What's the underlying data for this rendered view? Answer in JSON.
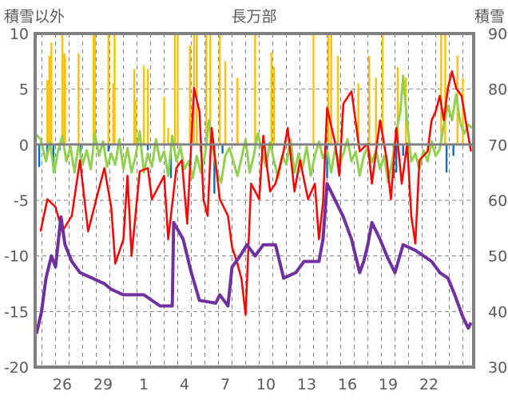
{
  "chart_data": {
    "type": "line",
    "title": "長万部",
    "ylabel_left": "積雪以外",
    "ylabel_right": "積雪",
    "ylim_left": [
      -20,
      10
    ],
    "ylim_right": [
      30,
      90
    ],
    "yticks_left": [
      "10",
      "5",
      "0",
      "-5",
      "-10",
      "-15",
      "-20"
    ],
    "yticks_right": [
      "90",
      "80",
      "70",
      "60",
      "50",
      "40",
      "30"
    ],
    "x_unit": "days from start (start = day 24)",
    "xlim": [
      0,
      32.3
    ],
    "xticks": [
      {
        "t": 2,
        "label": "26"
      },
      {
        "t": 5,
        "label": "29"
      },
      {
        "t": 8,
        "label": "1"
      },
      {
        "t": 11,
        "label": "4"
      },
      {
        "t": 14,
        "label": "7"
      },
      {
        "t": 17,
        "label": "10"
      },
      {
        "t": 20,
        "label": "13"
      },
      {
        "t": 23,
        "label": "16"
      },
      {
        "t": 26,
        "label": "19"
      },
      {
        "t": 29,
        "label": "22"
      }
    ],
    "grid": true,
    "colors": {
      "frame": "#808080",
      "red": "#ff0000",
      "purple": "#7030a0",
      "green": "#92d050",
      "yellow": "#ffc000",
      "blue": "#0070c0"
    },
    "series": [
      {
        "name": "yellow-bars",
        "axis": "left",
        "kind": "bar",
        "color": "#ffc000",
        "points": [
          [
            0.9,
            5.8
          ],
          [
            1.05,
            8
          ],
          [
            1.2,
            9.2
          ],
          [
            2,
            10
          ],
          [
            2.15,
            8.2
          ],
          [
            2.2,
            7.8
          ],
          [
            3.2,
            8.2
          ],
          [
            4.3,
            10
          ],
          [
            4.4,
            10
          ],
          [
            5.4,
            10
          ],
          [
            5.75,
            5.5
          ],
          [
            5.85,
            10
          ],
          [
            7.3,
            6.8
          ],
          [
            7.4,
            4
          ],
          [
            8,
            7.1
          ],
          [
            8.3,
            6.8
          ],
          [
            9.5,
            4.3
          ],
          [
            9.8,
            1.5
          ],
          [
            10.3,
            10
          ],
          [
            10.5,
            10
          ],
          [
            11.4,
            8.9
          ],
          [
            11.7,
            10
          ],
          [
            11.9,
            10
          ],
          [
            12.6,
            10
          ],
          [
            12.9,
            10
          ],
          [
            13.6,
            10
          ],
          [
            14,
            7.5
          ],
          [
            14.9,
            6
          ],
          [
            16.2,
            10
          ],
          [
            17.4,
            8.3
          ],
          [
            17.6,
            7
          ],
          [
            20.5,
            10
          ],
          [
            21.6,
            10
          ],
          [
            21.8,
            10
          ],
          [
            22.3,
            8
          ],
          [
            23.8,
            5.5
          ],
          [
            24.6,
            8
          ],
          [
            25.1,
            6
          ],
          [
            25.6,
            10
          ],
          [
            26.7,
            7
          ],
          [
            27.3,
            6
          ],
          [
            29.9,
            10
          ],
          [
            30.2,
            10
          ],
          [
            31.1,
            8
          ],
          [
            31.5,
            6
          ]
        ]
      },
      {
        "name": "blue-bars",
        "axis": "left",
        "kind": "bar",
        "color": "#0070c0",
        "points": [
          [
            0.3,
            -2
          ],
          [
            0.9,
            -1
          ],
          [
            1.35,
            -2.5
          ],
          [
            1.8,
            -0.5
          ],
          [
            3.35,
            -1.2
          ],
          [
            5.4,
            -0.6
          ],
          [
            8.3,
            -0.5
          ],
          [
            10,
            -3
          ],
          [
            12.2,
            -0.7
          ],
          [
            13.2,
            -4.4
          ],
          [
            13.8,
            -0.8
          ],
          [
            21.5,
            -3
          ],
          [
            24.5,
            -0.6
          ],
          [
            26.4,
            -3
          ],
          [
            26.6,
            -2.5
          ],
          [
            27.1,
            -1
          ],
          [
            30.3,
            -2.5
          ],
          [
            30.8,
            -1
          ]
        ]
      },
      {
        "name": "red",
        "axis": "left",
        "kind": "line",
        "color": "#ff0000",
        "points": [
          [
            0.4,
            -7.8
          ],
          [
            0.9,
            -4.9
          ],
          [
            1.5,
            -5.6
          ],
          [
            2,
            -7.8
          ],
          [
            2.7,
            -6.4
          ],
          [
            3.3,
            -1.4
          ],
          [
            3.9,
            -7.8
          ],
          [
            4.5,
            -4.9
          ],
          [
            5.1,
            -2.1
          ],
          [
            5.6,
            -5.6
          ],
          [
            5.9,
            -10.7
          ],
          [
            6.5,
            -8.5
          ],
          [
            6.8,
            -2.8
          ],
          [
            7.1,
            -10
          ],
          [
            7.7,
            -2.4
          ],
          [
            8.3,
            -2.1
          ],
          [
            8.6,
            -4.9
          ],
          [
            9.2,
            -3.5
          ],
          [
            9.5,
            -2.8
          ],
          [
            9.8,
            -8.5
          ],
          [
            10.4,
            -2.1
          ],
          [
            10.8,
            -1.4
          ],
          [
            11.2,
            -7.1
          ],
          [
            11.7,
            5.1
          ],
          [
            12.1,
            3
          ],
          [
            12.4,
            -4.9
          ],
          [
            12.7,
            -6.4
          ],
          [
            13,
            1.5
          ],
          [
            13.6,
            -4.9
          ],
          [
            14.2,
            -6.4
          ],
          [
            14.5,
            -9.2
          ],
          [
            14.9,
            -10.7
          ],
          [
            15.2,
            -12.1
          ],
          [
            15.5,
            -15.3
          ],
          [
            15.9,
            -3.5
          ],
          [
            16.5,
            -4.9
          ],
          [
            16.8,
            0.8
          ],
          [
            17.3,
            -4.2
          ],
          [
            17.7,
            -3.5
          ],
          [
            18.3,
            -0.6
          ],
          [
            18.6,
            1.5
          ],
          [
            19.1,
            -4.2
          ],
          [
            19.5,
            -1.4
          ],
          [
            20.1,
            -4.9
          ],
          [
            20.6,
            -3.5
          ],
          [
            20.9,
            -8.5
          ],
          [
            21.2,
            -5.2
          ],
          [
            21.5,
            3.3
          ],
          [
            22.1,
            0.1
          ],
          [
            22.4,
            -2.8
          ],
          [
            22.7,
            3.7
          ],
          [
            23.3,
            4.8
          ],
          [
            23.9,
            -0.6
          ],
          [
            24.5,
            0.1
          ],
          [
            24.8,
            -3.5
          ],
          [
            25.4,
            2.2
          ],
          [
            25.9,
            -1.4
          ],
          [
            26.2,
            -4.9
          ],
          [
            26.6,
            1.5
          ],
          [
            27,
            -3.5
          ],
          [
            27.4,
            0.1
          ],
          [
            27.7,
            -6.4
          ],
          [
            28,
            -8.9
          ],
          [
            28.3,
            -1.4
          ],
          [
            28.9,
            -0.6
          ],
          [
            29.2,
            2.2
          ],
          [
            29.5,
            3
          ],
          [
            29.8,
            4.4
          ],
          [
            30.1,
            2.2
          ],
          [
            30.4,
            5.1
          ],
          [
            30.7,
            6.6
          ],
          [
            31,
            5.1
          ],
          [
            31.4,
            4.4
          ],
          [
            31.8,
            1.5
          ],
          [
            32.1,
            -0.6
          ]
        ]
      },
      {
        "name": "green",
        "axis": "left",
        "kind": "line",
        "color": "#92d050",
        "points": [
          [
            0,
            1
          ],
          [
            0.4,
            0.5
          ],
          [
            0.8,
            -1.5
          ],
          [
            1.1,
            0.2
          ],
          [
            1.4,
            -2.5
          ],
          [
            1.7,
            -0.5
          ],
          [
            2,
            0.8
          ],
          [
            2.3,
            -1.5
          ],
          [
            2.6,
            -0.2
          ],
          [
            2.9,
            -2.5
          ],
          [
            3.2,
            0
          ],
          [
            3.5,
            -1.8
          ],
          [
            3.8,
            -0.5
          ],
          [
            4.1,
            -2.2
          ],
          [
            4.4,
            1
          ],
          [
            4.7,
            -1
          ],
          [
            5,
            0.3
          ],
          [
            5.3,
            -2
          ],
          [
            5.6,
            -0.8
          ],
          [
            5.9,
            -1.8
          ],
          [
            6.2,
            0.5
          ],
          [
            6.5,
            -2.2
          ],
          [
            6.8,
            -0.3
          ],
          [
            7.1,
            -2.5
          ],
          [
            7.4,
            -1
          ],
          [
            7.7,
            1.2
          ],
          [
            8,
            -2.5
          ],
          [
            8.3,
            -0.8
          ],
          [
            8.6,
            -2
          ],
          [
            8.9,
            0.5
          ],
          [
            9.2,
            -1.5
          ],
          [
            9.5,
            -0.6
          ],
          [
            9.8,
            -2.8
          ],
          [
            10.1,
            0.8
          ],
          [
            10.4,
            -1.5
          ],
          [
            10.7,
            -0.2
          ],
          [
            11,
            -2.2
          ],
          [
            11.3,
            -1.5
          ],
          [
            11.6,
            -3
          ],
          [
            11.9,
            -1
          ],
          [
            12.2,
            -2.5
          ],
          [
            12.5,
            -1
          ],
          [
            12.8,
            2.2
          ],
          [
            13.1,
            -0.5
          ],
          [
            13.4,
            -2.5
          ],
          [
            13.7,
            -3.4
          ],
          [
            14,
            -1
          ],
          [
            14.3,
            -0.3
          ],
          [
            14.6,
            -1.5
          ],
          [
            14.9,
            -2.8
          ],
          [
            15.2,
            -1.2
          ],
          [
            15.5,
            0.5
          ],
          [
            15.8,
            -2.5
          ],
          [
            16.1,
            -1
          ],
          [
            16.4,
            1
          ],
          [
            16.7,
            -0.5
          ],
          [
            17,
            -2
          ],
          [
            17.3,
            0.2
          ],
          [
            17.6,
            -1.5
          ],
          [
            17.9,
            -3
          ],
          [
            18.2,
            -1
          ],
          [
            18.5,
            -1.8
          ],
          [
            18.8,
            0.5
          ],
          [
            19.1,
            -2.5
          ],
          [
            19.4,
            -0.8
          ],
          [
            19.7,
            -2
          ],
          [
            20,
            -0.2
          ],
          [
            20.3,
            -2.8
          ],
          [
            20.6,
            -1
          ],
          [
            20.9,
            0.3
          ],
          [
            21.2,
            -1.2
          ],
          [
            21.5,
            -0.5
          ],
          [
            21.8,
            -2.5
          ],
          [
            22.1,
            -0.3
          ],
          [
            22.4,
            -1.8
          ],
          [
            22.7,
            -0.8
          ],
          [
            23,
            0.5
          ],
          [
            23.3,
            -1.5
          ],
          [
            23.6,
            -0.6
          ],
          [
            23.9,
            -2.8
          ],
          [
            24.2,
            -1
          ],
          [
            24.5,
            -0.2
          ],
          [
            24.8,
            -1.6
          ],
          [
            25.1,
            -0.5
          ],
          [
            25.4,
            -2.2
          ],
          [
            25.7,
            -1
          ],
          [
            26,
            -3.4
          ],
          [
            26.3,
            -1.5
          ],
          [
            26.6,
            1.2
          ],
          [
            26.9,
            3
          ],
          [
            27.1,
            6.2
          ],
          [
            27.4,
            2
          ],
          [
            27.7,
            -1.5
          ],
          [
            28,
            -0.8
          ],
          [
            28.3,
            -2.2
          ],
          [
            28.6,
            -0.5
          ],
          [
            28.9,
            -1.5
          ],
          [
            29.2,
            0.3
          ],
          [
            29.5,
            -1
          ],
          [
            29.8,
            -0.4
          ],
          [
            30.1,
            1.8
          ],
          [
            30.4,
            3.5
          ],
          [
            30.7,
            2.2
          ],
          [
            31,
            4.5
          ],
          [
            31.3,
            2
          ],
          [
            31.6,
            1
          ],
          [
            31.9,
            1.8
          ],
          [
            32.2,
            1.5
          ]
        ]
      },
      {
        "name": "purple",
        "axis": "right",
        "kind": "line",
        "color": "#7030a0",
        "points": [
          [
            0.1,
            36
          ],
          [
            0.47,
            40
          ],
          [
            0.8,
            46
          ],
          [
            1.2,
            50
          ],
          [
            1.5,
            48
          ],
          [
            1.9,
            57
          ],
          [
            2.2,
            52
          ],
          [
            2.7,
            49
          ],
          [
            3.3,
            47
          ],
          [
            4.2,
            46
          ],
          [
            5.1,
            45
          ],
          [
            5.6,
            44
          ],
          [
            6.5,
            43
          ],
          [
            8,
            43
          ],
          [
            8.6,
            42
          ],
          [
            9.2,
            41
          ],
          [
            10.1,
            41
          ],
          [
            10.2,
            56
          ],
          [
            10.9,
            53
          ],
          [
            11.5,
            47
          ],
          [
            12.1,
            42
          ],
          [
            13.3,
            41.5
          ],
          [
            13.6,
            43
          ],
          [
            14.2,
            41
          ],
          [
            14.5,
            48
          ],
          [
            15.1,
            50
          ],
          [
            15.6,
            52
          ],
          [
            16.2,
            50
          ],
          [
            16.8,
            52
          ],
          [
            17.7,
            52
          ],
          [
            18.3,
            46
          ],
          [
            19.2,
            47
          ],
          [
            19.8,
            49
          ],
          [
            20.9,
            49
          ],
          [
            21.2,
            53
          ],
          [
            21.5,
            63
          ],
          [
            22.1,
            60
          ],
          [
            22.7,
            57
          ],
          [
            23.3,
            53
          ],
          [
            23.9,
            47
          ],
          [
            24.2,
            49
          ],
          [
            24.5,
            52
          ],
          [
            24.8,
            56
          ],
          [
            25.4,
            53
          ],
          [
            25.9,
            50
          ],
          [
            26.5,
            47
          ],
          [
            27.1,
            52
          ],
          [
            28,
            51
          ],
          [
            29.2,
            49
          ],
          [
            29.8,
            47
          ],
          [
            30.4,
            46
          ],
          [
            30.9,
            43
          ],
          [
            31.5,
            39
          ],
          [
            31.9,
            37
          ],
          [
            32.1,
            38
          ]
        ]
      }
    ]
  }
}
